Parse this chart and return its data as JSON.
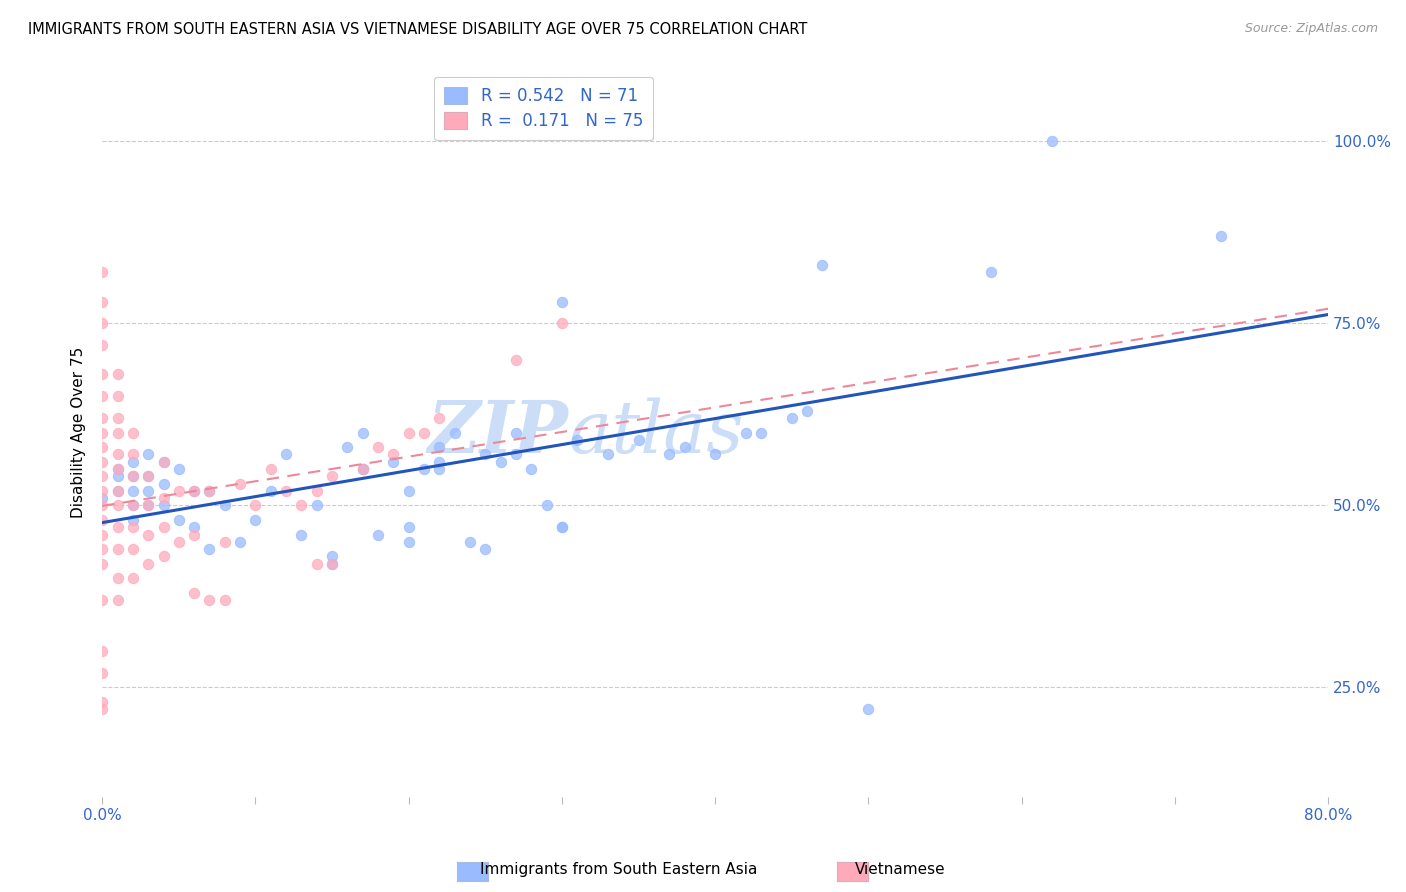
{
  "title": "IMMIGRANTS FROM SOUTH EASTERN ASIA VS VIETNAMESE DISABILITY AGE OVER 75 CORRELATION CHART",
  "source": "Source: ZipAtlas.com",
  "ylabel": "Disability Age Over 75",
  "xlim": [
    0.0,
    0.8
  ],
  "ylim": [
    0.1,
    1.1
  ],
  "r1": "0.542",
  "n1": "71",
  "r2": "0.171",
  "n2": "75",
  "color_blue": "#99BBFF",
  "color_pink": "#FFAABB",
  "color_line_blue": "#2255BB",
  "color_line_pink": "#EE8899",
  "watermark_zip": "ZIP",
  "watermark_atlas": "atlas",
  "legend_label1": "Immigrants from South Eastern Asia",
  "legend_label2": "Vietnamese",
  "blue_points_x": [
    0.62,
    0.47,
    0.0,
    0.01,
    0.01,
    0.01,
    0.02,
    0.02,
    0.02,
    0.02,
    0.02,
    0.03,
    0.03,
    0.03,
    0.03,
    0.04,
    0.04,
    0.04,
    0.05,
    0.05,
    0.06,
    0.06,
    0.07,
    0.07,
    0.08,
    0.09,
    0.1,
    0.11,
    0.12,
    0.13,
    0.14,
    0.15,
    0.16,
    0.17,
    0.18,
    0.19,
    0.2,
    0.21,
    0.22,
    0.23,
    0.24,
    0.25,
    0.26,
    0.27,
    0.28,
    0.29,
    0.3,
    0.31,
    0.33,
    0.35,
    0.37,
    0.38,
    0.4,
    0.42,
    0.43,
    0.45,
    0.46,
    0.3,
    0.73,
    0.58,
    0.5,
    0.17,
    0.17,
    0.15,
    0.2,
    0.2,
    0.22,
    0.22,
    0.25,
    0.27,
    0.3
  ],
  "blue_points_y": [
    1.0,
    0.83,
    0.51,
    0.52,
    0.54,
    0.55,
    0.5,
    0.52,
    0.54,
    0.56,
    0.48,
    0.5,
    0.52,
    0.54,
    0.57,
    0.5,
    0.53,
    0.56,
    0.48,
    0.55,
    0.47,
    0.52,
    0.44,
    0.52,
    0.5,
    0.45,
    0.48,
    0.52,
    0.57,
    0.46,
    0.5,
    0.43,
    0.58,
    0.55,
    0.46,
    0.56,
    0.47,
    0.55,
    0.56,
    0.6,
    0.45,
    0.44,
    0.56,
    0.6,
    0.55,
    0.5,
    0.47,
    0.59,
    0.57,
    0.59,
    0.57,
    0.58,
    0.57,
    0.6,
    0.6,
    0.62,
    0.63,
    0.78,
    0.87,
    0.82,
    0.22,
    0.55,
    0.6,
    0.42,
    0.45,
    0.52,
    0.55,
    0.58,
    0.57,
    0.57,
    0.47
  ],
  "pink_points_x": [
    0.0,
    0.0,
    0.0,
    0.0,
    0.0,
    0.0,
    0.0,
    0.0,
    0.0,
    0.0,
    0.0,
    0.0,
    0.0,
    0.0,
    0.0,
    0.0,
    0.0,
    0.0,
    0.0,
    0.0,
    0.0,
    0.0,
    0.01,
    0.01,
    0.01,
    0.01,
    0.01,
    0.01,
    0.01,
    0.01,
    0.01,
    0.01,
    0.01,
    0.01,
    0.02,
    0.02,
    0.02,
    0.02,
    0.02,
    0.02,
    0.02,
    0.03,
    0.03,
    0.03,
    0.03,
    0.04,
    0.04,
    0.04,
    0.04,
    0.05,
    0.05,
    0.06,
    0.06,
    0.06,
    0.07,
    0.07,
    0.08,
    0.08,
    0.09,
    0.1,
    0.11,
    0.12,
    0.13,
    0.14,
    0.14,
    0.15,
    0.15,
    0.17,
    0.18,
    0.19,
    0.2,
    0.21,
    0.22,
    0.27,
    0.3
  ],
  "pink_points_y": [
    0.22,
    0.23,
    0.27,
    0.3,
    0.37,
    0.42,
    0.44,
    0.46,
    0.48,
    0.5,
    0.52,
    0.54,
    0.56,
    0.58,
    0.6,
    0.62,
    0.65,
    0.68,
    0.72,
    0.75,
    0.78,
    0.82,
    0.37,
    0.4,
    0.44,
    0.47,
    0.5,
    0.52,
    0.55,
    0.57,
    0.6,
    0.62,
    0.65,
    0.68,
    0.4,
    0.44,
    0.47,
    0.5,
    0.54,
    0.57,
    0.6,
    0.42,
    0.46,
    0.5,
    0.54,
    0.43,
    0.47,
    0.51,
    0.56,
    0.45,
    0.52,
    0.38,
    0.46,
    0.52,
    0.37,
    0.52,
    0.37,
    0.45,
    0.53,
    0.5,
    0.55,
    0.52,
    0.5,
    0.52,
    0.42,
    0.54,
    0.42,
    0.55,
    0.58,
    0.57,
    0.6,
    0.6,
    0.62,
    0.7,
    0.75
  ]
}
